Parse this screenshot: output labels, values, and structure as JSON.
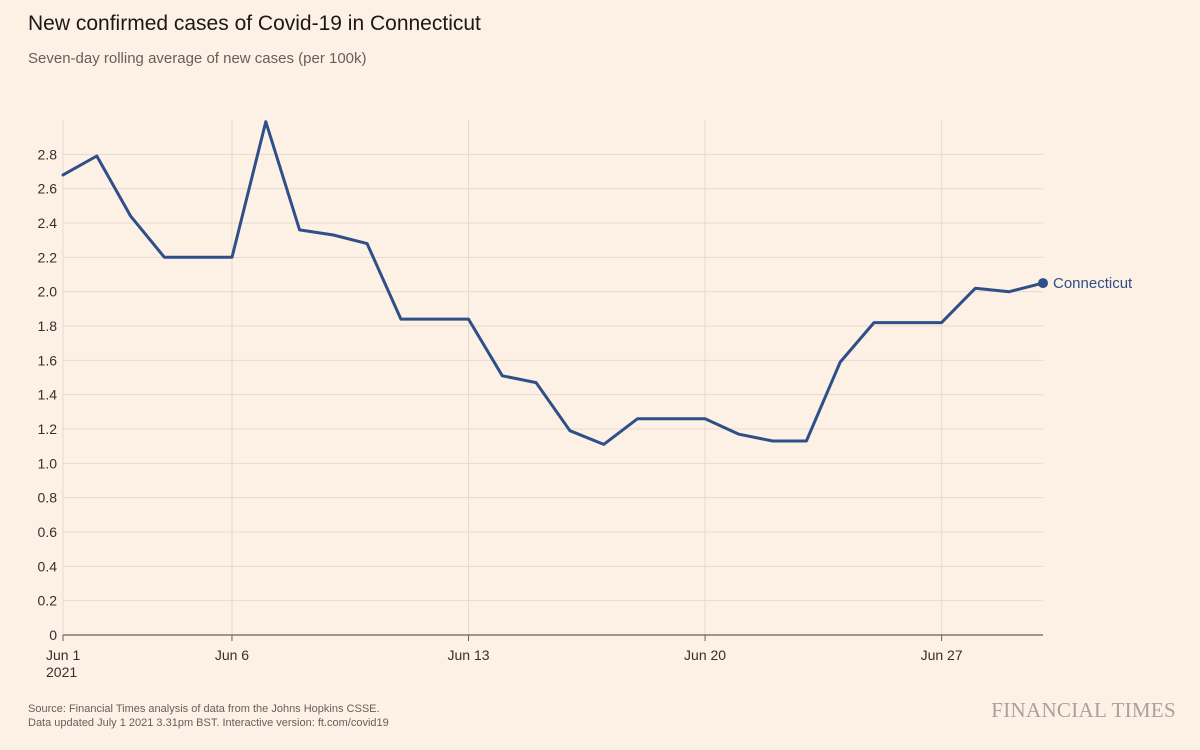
{
  "header": {
    "title": "New confirmed cases of Covid-19 in Connecticut",
    "subtitle": "Seven-day rolling average of new cases (per 100k)"
  },
  "footer": {
    "source_line1": "Source: Financial Times analysis of data from the Johns Hopkins CSSE.",
    "source_line2": "Data updated July 1 2021 3.31pm BST. Interactive version: ft.com/covid19",
    "brand": "FINANCIAL TIMES"
  },
  "colors": {
    "background": "#fdf1e5",
    "line": "#2e4f88",
    "grid": "#e6d9ce",
    "axis": "#66605c",
    "text": "#33302e"
  },
  "chart_data": {
    "type": "line",
    "title": "New confirmed cases of Covid-19 in Connecticut",
    "subtitle": "Seven-day rolling average of new cases (per 100k)",
    "xlabel": "",
    "ylabel": "",
    "x_ticks": [
      {
        "day": 1,
        "label": "Jun 1",
        "sublabel": "2021"
      },
      {
        "day": 6,
        "label": "Jun 6",
        "sublabel": ""
      },
      {
        "day": 13,
        "label": "Jun 13",
        "sublabel": ""
      },
      {
        "day": 20,
        "label": "Jun 20",
        "sublabel": ""
      },
      {
        "day": 27,
        "label": "Jun 27",
        "sublabel": ""
      }
    ],
    "y_ticks": [
      0,
      0.2,
      0.4,
      0.6,
      0.8,
      1.0,
      1.2,
      1.4,
      1.6,
      1.8,
      2.0,
      2.2,
      2.4,
      2.6,
      2.8
    ],
    "y_tick_labels": [
      "0",
      "0.2",
      "0.4",
      "0.6",
      "0.8",
      "1.0",
      "1.2",
      "1.4",
      "1.6",
      "1.8",
      "2.0",
      "2.2",
      "2.4",
      "2.6",
      "2.8"
    ],
    "xlim": [
      1,
      30
    ],
    "ylim": [
      0,
      3.0
    ],
    "grid": true,
    "series": [
      {
        "name": "Connecticut",
        "x": [
          1,
          2,
          3,
          4,
          5,
          6,
          7,
          8,
          9,
          10,
          11,
          12,
          13,
          14,
          15,
          16,
          17,
          18,
          19,
          20,
          21,
          22,
          23,
          24,
          25,
          26,
          27,
          28,
          29,
          30
        ],
        "values": [
          2.68,
          2.79,
          2.44,
          2.2,
          2.2,
          2.2,
          2.99,
          2.36,
          2.33,
          2.28,
          1.84,
          1.84,
          1.84,
          1.51,
          1.47,
          1.19,
          1.11,
          1.26,
          1.26,
          1.26,
          1.17,
          1.13,
          1.13,
          1.59,
          1.82,
          1.82,
          1.82,
          2.02,
          2.0,
          2.05
        ]
      }
    ]
  }
}
